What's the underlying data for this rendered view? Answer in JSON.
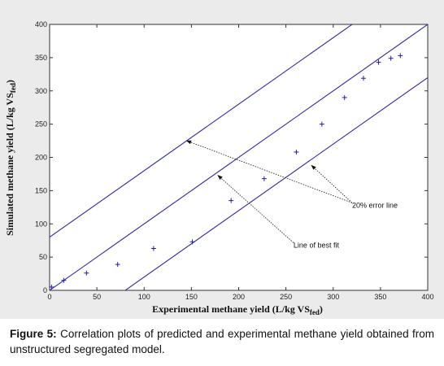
{
  "chart_data": {
    "type": "scatter",
    "title": "",
    "xlabel": "Experimental methane yield (L/kg VS",
    "xlabel_sub": "fed",
    "xlabel_end": ")",
    "ylabel": "Simulated methane yield (L/kg VS",
    "ylabel_sub": "fed",
    "ylabel_end": ")",
    "xlim": [
      0,
      400
    ],
    "ylim": [
      0,
      400
    ],
    "xticks": [
      "0",
      "50",
      "100",
      "150",
      "200",
      "250",
      "300",
      "350",
      "400"
    ],
    "yticks": [
      "0",
      "50",
      "100",
      "150",
      "200",
      "250",
      "300",
      "350",
      "400"
    ],
    "grid": false,
    "marker": "+",
    "marker_color": "#1e1ea8",
    "line_color": "#2a2aa8",
    "points": [
      {
        "x": 2,
        "y": 5
      },
      {
        "x": 15,
        "y": 15
      },
      {
        "x": 39,
        "y": 26
      },
      {
        "x": 72,
        "y": 39
      },
      {
        "x": 110,
        "y": 63
      },
      {
        "x": 151,
        "y": 73
      },
      {
        "x": 192,
        "y": 135
      },
      {
        "x": 227,
        "y": 168
      },
      {
        "x": 261,
        "y": 208
      },
      {
        "x": 288,
        "y": 250
      },
      {
        "x": 312,
        "y": 290
      },
      {
        "x": 332,
        "y": 319
      },
      {
        "x": 348,
        "y": 343
      },
      {
        "x": 361,
        "y": 349
      },
      {
        "x": 371,
        "y": 353
      }
    ],
    "lines": [
      {
        "label": "Line of best fit",
        "intercept": 0
      },
      {
        "label": "20% error line",
        "intercept": 80
      },
      {
        "label": "20% error line",
        "intercept": -80
      }
    ],
    "annotations": [
      {
        "text": "20% error line",
        "at": [
          320,
          128
        ],
        "arrows_to": [
          [
            145,
            225
          ],
          [
            277,
            188
          ]
        ]
      },
      {
        "text": "Line of best fit",
        "at": [
          258,
          68
        ],
        "arrows_to": [
          [
            178,
            173
          ]
        ]
      }
    ]
  },
  "caption": {
    "label": "Figure 5:",
    "text": " Correlation plots of predicted and experimental methane yield obtained from unstructured segregated model."
  }
}
